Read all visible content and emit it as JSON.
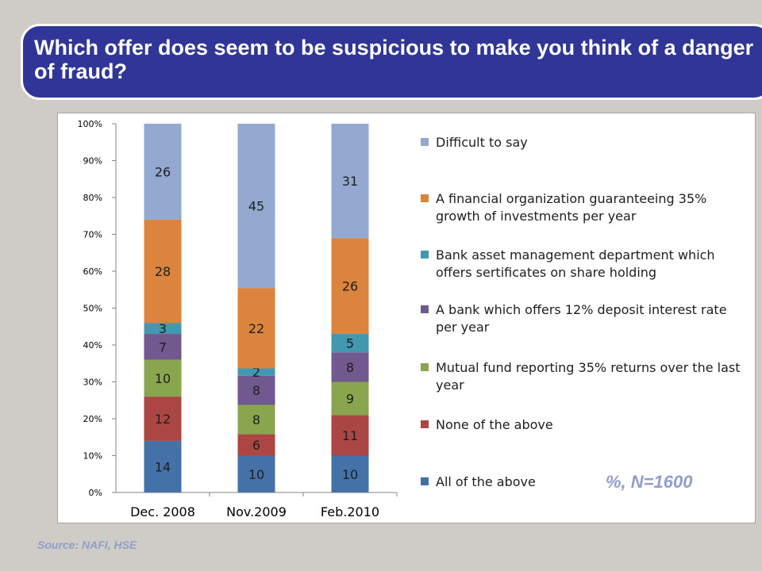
{
  "title": "Which offer does seem to be suspicious to make you think of a danger of fraud?",
  "note": "%, N=1600",
  "source": "Source:  NAFI, HSE",
  "chart_data": {
    "type": "bar",
    "stacked": true,
    "percent_stacked": true,
    "categories": [
      "Dec. 2008",
      "Nov.2009",
      "Feb.2010"
    ],
    "ylim": [
      0,
      100
    ],
    "yticks": [
      "0%",
      "10%",
      "20%",
      "30%",
      "40%",
      "50%",
      "60%",
      "70%",
      "80%",
      "90%",
      "100%"
    ],
    "grid": false,
    "legend_position": "right",
    "series": [
      {
        "name": "All of the above",
        "values": [
          14,
          10,
          10
        ],
        "color": "#4472a8"
      },
      {
        "name": "None of the above",
        "values": [
          12,
          6,
          11
        ],
        "color": "#ab4644"
      },
      {
        "name": "Mutual fund reporting 35% returns over the last year",
        "values": [
          10,
          8,
          9
        ],
        "color": "#89a54e"
      },
      {
        "name": "A bank which offers 12% deposit interest rate per year",
        "values": [
          7,
          8,
          8
        ],
        "color": "#71588f"
      },
      {
        "name": "Bank asset management department which offers sertificates on share holding",
        "values": [
          3,
          2,
          5
        ],
        "color": "#4198af"
      },
      {
        "name": "A financial organization guaranteeing 35% growth of investments per year",
        "values": [
          28,
          22,
          26
        ],
        "color": "#db843d"
      },
      {
        "name": "Difficult to say",
        "values": [
          26,
          45,
          31
        ],
        "color": "#93a9cf"
      }
    ]
  }
}
